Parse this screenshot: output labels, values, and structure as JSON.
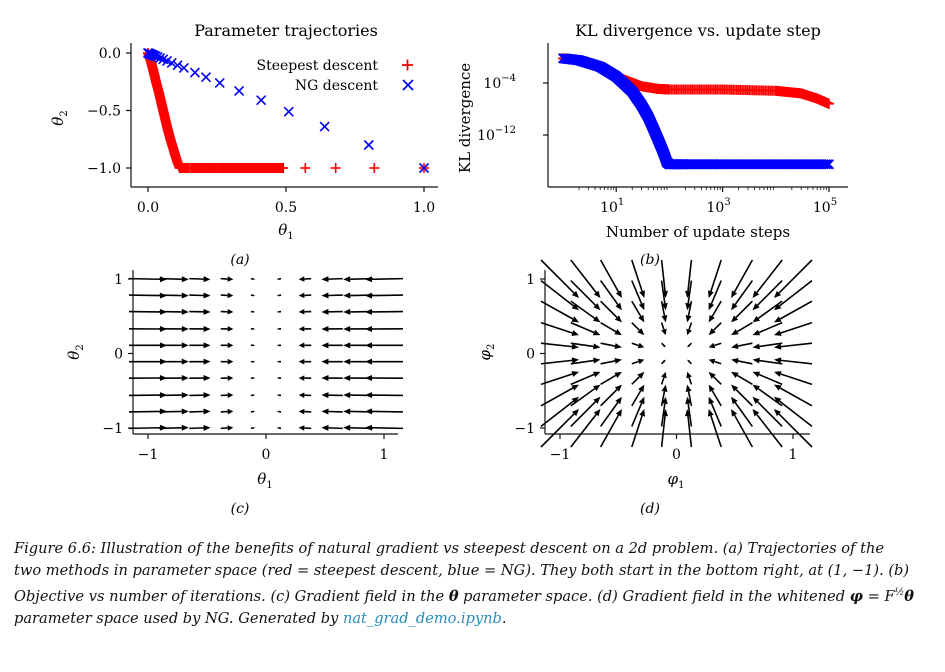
{
  "chart_data": [
    {
      "id": "a",
      "type": "scatter",
      "title": "Parameter trajectories",
      "xlabel": "θ1",
      "ylabel": "θ2",
      "xlim": [
        -0.05,
        1.05
      ],
      "ylim": [
        -1.08,
        0.05
      ],
      "xticks": [
        0.0,
        0.5,
        1.0
      ],
      "xtick_labels": [
        "0.0",
        "0.5",
        "1.0"
      ],
      "yticks": [
        0.0,
        -0.5,
        -1.0
      ],
      "ytick_labels": [
        "0.0",
        "−0.5",
        "−1.0"
      ],
      "legend_position": "top-right",
      "grid": false,
      "series": [
        {
          "name": "Steepest descent",
          "marker": "+",
          "color": "#ff0000",
          "x": [
            1.0,
            0.82,
            0.68,
            0.57,
            0.49,
            0.42,
            0.37,
            0.33,
            0.3,
            0.28,
            0.26,
            0.245,
            0.232,
            0.22,
            0.21,
            0.2,
            0.19,
            0.18,
            0.172,
            0.165,
            0.158,
            0.152,
            0.146,
            0.14,
            0.135,
            0.13,
            0.126,
            0.122,
            0.119,
            0.115,
            0.108,
            0.1,
            0.09,
            0.08,
            0.07,
            0.06,
            0.05,
            0.04,
            0.03,
            0.02,
            0.01,
            0.0
          ],
          "y": [
            -1.0,
            -1.0,
            -1.0,
            -1.0,
            -1.0,
            -1.0,
            -1.0,
            -1.0,
            -1.0,
            -1.0,
            -1.0,
            -1.0,
            -1.0,
            -1.0,
            -1.0,
            -1.0,
            -1.0,
            -1.0,
            -1.0,
            -1.0,
            -1.0,
            -1.0,
            -1.0,
            -1.0,
            -1.0,
            -1.0,
            -1.0,
            -1.0,
            -1.0,
            -1.0,
            -0.96,
            -0.9,
            -0.82,
            -0.74,
            -0.65,
            -0.55,
            -0.45,
            -0.35,
            -0.26,
            -0.16,
            -0.07,
            0.0
          ]
        },
        {
          "name": "NG descent",
          "marker": "x",
          "color": "#0000ff",
          "x": [
            1.0,
            0.8,
            0.64,
            0.51,
            0.41,
            0.33,
            0.26,
            0.21,
            0.17,
            0.13,
            0.107,
            0.086,
            0.069,
            0.055,
            0.044,
            0.035,
            0.028,
            0.022,
            0.018,
            0.014,
            0.011,
            0.009,
            0.007,
            0.005,
            0.003,
            0.0
          ],
          "y": [
            -1.0,
            -0.8,
            -0.64,
            -0.51,
            -0.41,
            -0.33,
            -0.26,
            -0.21,
            -0.17,
            -0.13,
            -0.107,
            -0.086,
            -0.069,
            -0.055,
            -0.044,
            -0.035,
            -0.028,
            -0.022,
            -0.018,
            -0.014,
            -0.011,
            -0.009,
            -0.007,
            -0.005,
            -0.003,
            0.0
          ]
        }
      ],
      "legend_labels": [
        "Steepest descent",
        "NG descent"
      ],
      "panel_label": "(a)"
    },
    {
      "id": "b",
      "type": "line",
      "title": "KL divergence vs. update step",
      "xlabel": "Number of update steps",
      "ylabel": "KL divergence",
      "x_scale": "log",
      "y_scale": "log",
      "xlim": [
        0.5,
        200000
      ],
      "ylim_log10": [
        -19.3,
        2.8
      ],
      "xticks": [
        "10^1",
        "10^3",
        "10^5"
      ],
      "yticks": [
        "10^-4",
        "10^-12"
      ],
      "grid": false,
      "series": [
        {
          "name": "",
          "color": "#ff0000",
          "x": [
            1,
            2,
            5,
            10,
            30,
            60,
            100,
            1000,
            10000,
            30000,
            60000,
            100000
          ],
          "log10_y": [
            -0.2,
            -0.5,
            -1.5,
            -3.0,
            -4.5,
            -4.9,
            -5.0,
            -5.0,
            -5.2,
            -5.6,
            -6.4,
            -7.2
          ]
        },
        {
          "name": "",
          "color": "#0000ff",
          "x": [
            1,
            2,
            5,
            10,
            20,
            30,
            40,
            50,
            60,
            70,
            80,
            90,
            100,
            200,
            1000,
            10000,
            100000
          ],
          "log10_y": [
            -0.2,
            -0.5,
            -1.5,
            -3.0,
            -5.3,
            -7.4,
            -9.2,
            -11.0,
            -12.5,
            -13.8,
            -15.0,
            -16.2,
            -16.5,
            -16.5,
            -16.5,
            -16.5,
            -16.5
          ]
        }
      ],
      "panel_label": "(b)"
    },
    {
      "id": "c",
      "type": "quiver",
      "xlabel": "θ1",
      "ylabel": "θ2",
      "xlim": [
        -1.1,
        1.1
      ],
      "ylim": [
        -1.1,
        1.1
      ],
      "xticks": [
        -1,
        0,
        1
      ],
      "xtick_labels": [
        "−1",
        "0",
        "1"
      ],
      "yticks": [
        1,
        0,
        -1
      ],
      "ytick_labels": [
        "1",
        "0",
        "−1"
      ],
      "grid_x": [
        -1.0,
        -0.78,
        -0.56,
        -0.33,
        -0.11,
        0.11,
        0.33,
        0.56,
        0.78,
        1.0
      ],
      "grid_y": [
        -1.0,
        -0.78,
        -0.56,
        -0.33,
        -0.11,
        0.11,
        0.33,
        0.56,
        0.78,
        1.0
      ],
      "field": "u = -theta1, v = -0.02*theta2",
      "panel_label": "(c)"
    },
    {
      "id": "d",
      "type": "quiver",
      "xlabel": "φ1",
      "ylabel": "φ2",
      "xlim": [
        -1.1,
        1.1
      ],
      "ylim": [
        -1.1,
        1.1
      ],
      "xticks": [
        -1,
        0,
        1
      ],
      "xtick_labels": [
        "−1",
        "0",
        "1"
      ],
      "yticks": [
        1,
        0,
        -1
      ],
      "ytick_labels": [
        "1",
        "0",
        "−1"
      ],
      "grid_x": [
        -1.0,
        -0.78,
        -0.56,
        -0.33,
        -0.11,
        0.11,
        0.33,
        0.56,
        0.78,
        1.0
      ],
      "grid_y": [
        -1.0,
        -0.78,
        -0.56,
        -0.33,
        -0.11,
        0.11,
        0.33,
        0.56,
        0.78,
        1.0
      ],
      "field": "u = -phi1, v = -phi2",
      "panel_label": "(d)"
    }
  ],
  "caption": {
    "part1": "Figure 6.6: Illustration of the benefits of natural gradient vs steepest descent on a 2d problem. (a) Trajectories of the two methods in parameter space (red = steepest descent, blue = NG). They both start in the bottom right, at (1, −1). (b) Objective vs number of iterations. (c) Gradient field in the ",
    "theta": "θ",
    "part2": " parameter space. (d) Gradient field in the whitened ",
    "phi": "φ",
    "eq": " = F",
    "sup": "½",
    "theta2": "θ",
    "part3": " parameter space used by NG. Generated by ",
    "link": "nat_grad_demo.ipynb",
    "part4": "."
  },
  "colors": {
    "red": "#ff0000",
    "blue": "#0000ff",
    "axis": "#111111",
    "arrow": "#000000",
    "link": "#2b8cbe"
  }
}
